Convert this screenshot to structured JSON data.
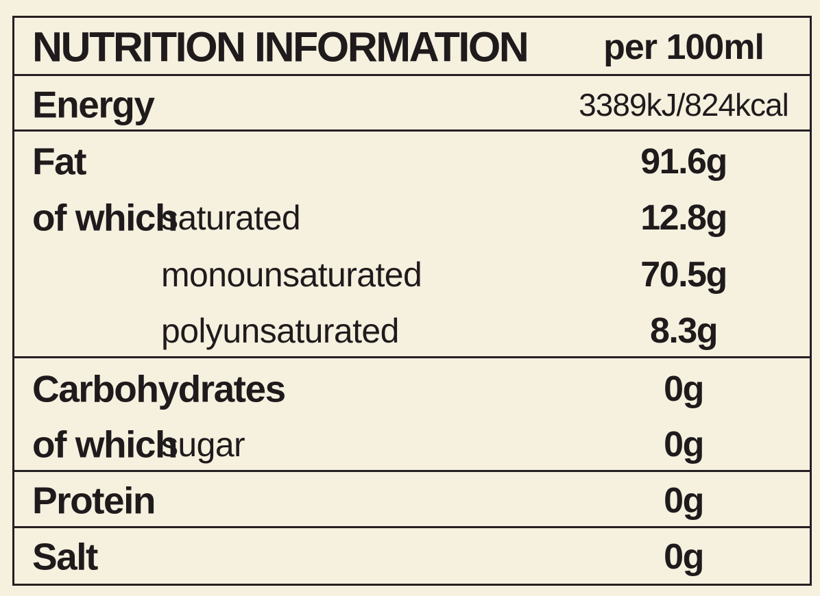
{
  "title": "NUTRITION INFORMATION",
  "per_unit": "per 100ml",
  "rows": [
    {
      "name": "Energy",
      "value": "3389kJ/824kcal"
    },
    {
      "name": "Fat",
      "value": "91.6g"
    },
    {
      "prefix": "of which",
      "name": "saturated",
      "value": "12.8g"
    },
    {
      "name": "monounsaturated",
      "value": "70.5g"
    },
    {
      "name": "polyunsaturated",
      "value": "8.3g"
    },
    {
      "name": "Carbohydrates",
      "value": "0g"
    },
    {
      "prefix": "of which",
      "name": "sugar",
      "value": "0g"
    },
    {
      "name": "Protein",
      "value": "0g"
    },
    {
      "name": "Salt",
      "value": "0g"
    }
  ]
}
